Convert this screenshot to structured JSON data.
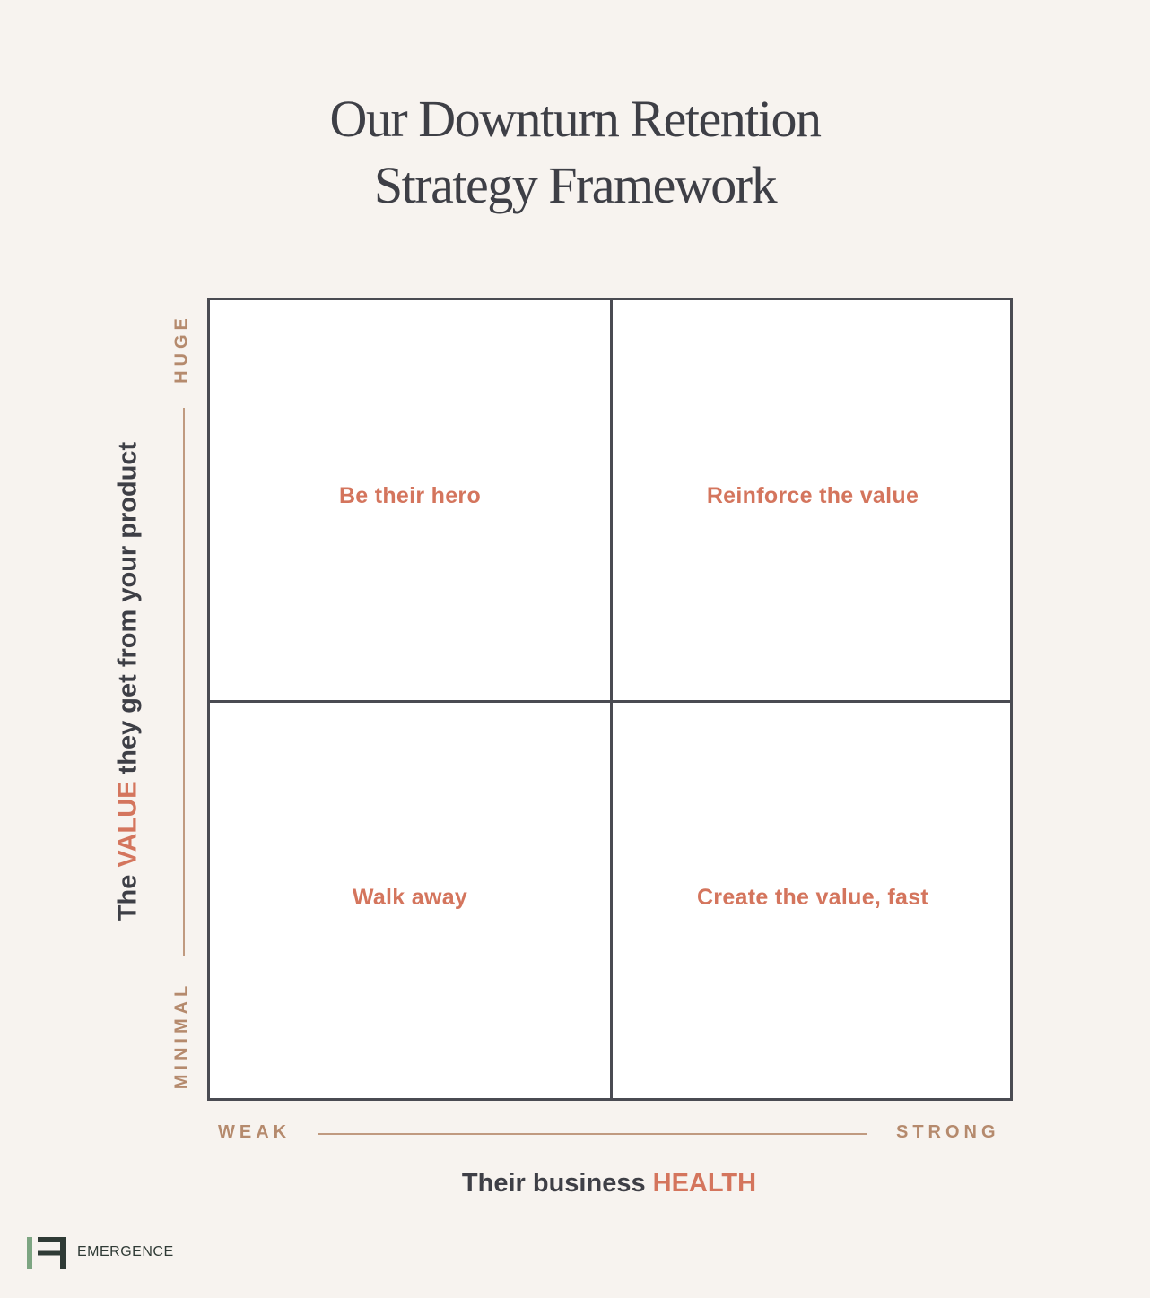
{
  "title": {
    "line1": "Our Downturn Retention",
    "line2": "Strategy Framework"
  },
  "quadrants": {
    "top_left": "Be their hero",
    "top_right": "Reinforce the value",
    "bottom_left": "Walk away",
    "bottom_right": "Create the value, fast"
  },
  "x_axis": {
    "low": "WEAK",
    "high": "STRONG",
    "title_prefix": "Their business ",
    "title_accent": "HEALTH"
  },
  "y_axis": {
    "low": "MINIMAL",
    "high": "HUGE",
    "title_prefix": "The ",
    "title_accent": "VALUE",
    "title_suffix": " they get from your product"
  },
  "brand": {
    "name": "EMERGENCE",
    "logo_icon": "emergence-logo-icon"
  },
  "colors": {
    "background": "#f7f3ef",
    "accent": "#d4755d",
    "axis_label": "#b58a6d",
    "ink": "#3e3f46",
    "logo_green": "#7da582",
    "logo_dark": "#2f3a35"
  }
}
